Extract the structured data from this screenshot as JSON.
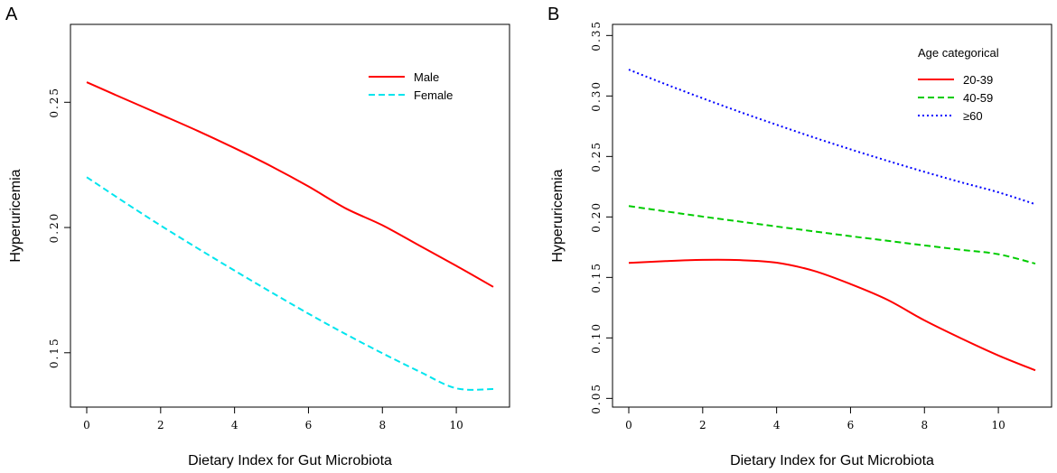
{
  "chart_data": [
    {
      "panel_label": "A",
      "type": "line",
      "xlabel": "Dietary Index for Gut Microbiota",
      "ylabel": "Hyperuricemia",
      "xlim": [
        -0.44,
        11.44
      ],
      "ylim": [
        0.1283,
        0.2811
      ],
      "xticks": [
        0,
        2,
        4,
        6,
        8,
        10
      ],
      "yticks": [
        0.15,
        0.2,
        0.25
      ],
      "xtick_labels": [
        "0",
        "2",
        "4",
        "6",
        "8",
        "10"
      ],
      "ytick_labels": [
        "0.15",
        "0.20",
        "0.25"
      ],
      "legend": {
        "title": "",
        "position": "top-right"
      },
      "series": [
        {
          "name": "Male",
          "color": "#ff0000",
          "dash": "solid",
          "x": [
            0,
            1,
            2,
            3,
            4,
            5,
            6,
            7,
            8,
            9,
            10,
            11
          ],
          "values": [
            0.258,
            0.2515,
            0.2451,
            0.2386,
            0.2317,
            0.2244,
            0.2164,
            0.2077,
            0.2009,
            0.1928,
            0.1847,
            0.1763
          ]
        },
        {
          "name": "Female",
          "color": "#00e5ee",
          "dash": "dashed",
          "x": [
            0,
            1,
            2,
            3,
            4,
            5,
            6,
            7,
            8,
            9,
            10,
            11
          ],
          "values": [
            0.2201,
            0.2103,
            0.2008,
            0.1917,
            0.1828,
            0.1741,
            0.1656,
            0.1575,
            0.1498,
            0.1425,
            0.1358,
            0.1355
          ]
        }
      ]
    },
    {
      "panel_label": "B",
      "type": "line",
      "xlabel": "Dietary Index for Gut Microbiota",
      "ylabel": "Hyperuricemia",
      "xlim": [
        -0.44,
        11.44
      ],
      "ylim": [
        0.0428,
        0.3592
      ],
      "xticks": [
        0,
        2,
        4,
        6,
        8,
        10
      ],
      "yticks": [
        0.05,
        0.1,
        0.15,
        0.2,
        0.25,
        0.3,
        0.35
      ],
      "xtick_labels": [
        "0",
        "2",
        "4",
        "6",
        "8",
        "10"
      ],
      "ytick_labels": [
        "0.05",
        "0.10",
        "0.15",
        "0.20",
        "0.25",
        "0.30",
        "0.35"
      ],
      "legend": {
        "title": "Age categorical",
        "position": "top-right"
      },
      "series": [
        {
          "name": "20-39",
          "color": "#ff0000",
          "dash": "solid",
          "x": [
            0,
            1,
            2,
            3,
            4,
            5,
            6,
            7,
            8,
            9,
            10,
            11
          ],
          "values": [
            0.162,
            0.1635,
            0.1645,
            0.1643,
            0.1622,
            0.1555,
            0.1445,
            0.1315,
            0.1145,
            0.0995,
            0.0855,
            0.0732
          ]
        },
        {
          "name": "40-59",
          "color": "#00cc00",
          "dash": "dashed",
          "x": [
            0,
            1,
            2,
            3,
            4,
            5,
            6,
            7,
            8,
            9,
            10,
            11
          ],
          "values": [
            0.209,
            0.2046,
            0.2003,
            0.1962,
            0.1921,
            0.1881,
            0.1841,
            0.1803,
            0.1765,
            0.1728,
            0.1692,
            0.1614
          ]
        },
        {
          "name": "≥60",
          "color": "#0000ff",
          "dash": "dotted",
          "x": [
            0,
            1,
            2,
            3,
            4,
            5,
            6,
            7,
            8,
            9,
            10,
            11
          ],
          "values": [
            0.3218,
            0.3097,
            0.2981,
            0.2869,
            0.2762,
            0.2658,
            0.2559,
            0.2464,
            0.2373,
            0.2286,
            0.2204,
            0.2105
          ]
        }
      ]
    }
  ]
}
